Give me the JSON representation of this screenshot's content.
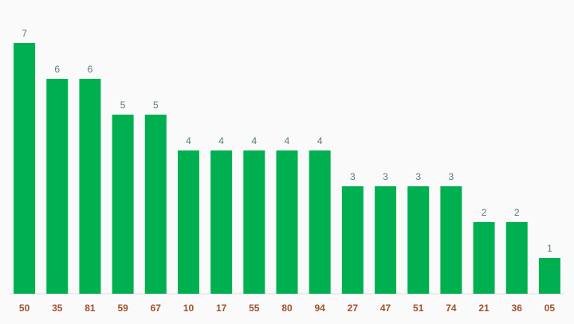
{
  "chart_data": {
    "type": "bar",
    "categories": [
      "50",
      "35",
      "81",
      "59",
      "67",
      "10",
      "17",
      "55",
      "80",
      "94",
      "27",
      "47",
      "51",
      "74",
      "21",
      "36",
      "05"
    ],
    "values": [
      7,
      6,
      6,
      5,
      5,
      4,
      4,
      4,
      4,
      4,
      3,
      3,
      3,
      3,
      2,
      2,
      1
    ],
    "ylim": [
      0,
      7
    ],
    "grid": false,
    "data_labels": true
  },
  "colors": {
    "bar": "#00b050",
    "value_label": "#5a7a7a",
    "category_label": "#a0522d",
    "baseline": "#dddddd",
    "background": "#fafafa"
  }
}
